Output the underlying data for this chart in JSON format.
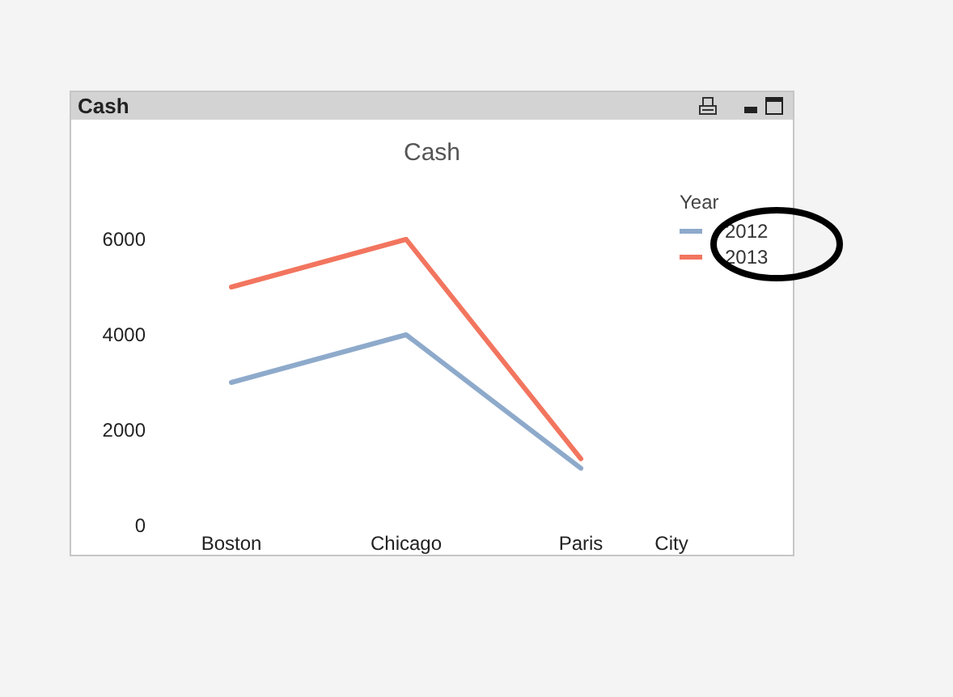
{
  "chart_data": {
    "type": "line",
    "title": "Cash",
    "xlabel": "City",
    "legend_title": "Year",
    "annotations": [
      "Cash"
    ],
    "categories": [
      "Boston",
      "Chicago",
      "Paris"
    ],
    "series": [
      {
        "name": "2012",
        "color": "#8eaacb",
        "values": [
          3000,
          4000,
          1200
        ]
      },
      {
        "name": "2013",
        "color": "#f2755f",
        "values": [
          5000,
          6000,
          1400
        ]
      }
    ],
    "ylim": [
      0,
      6000
    ],
    "yticks": [
      0,
      2000,
      4000,
      6000
    ],
    "grid": false,
    "legend": "top right",
    "marker": "none",
    "line_style": "solid"
  }
}
